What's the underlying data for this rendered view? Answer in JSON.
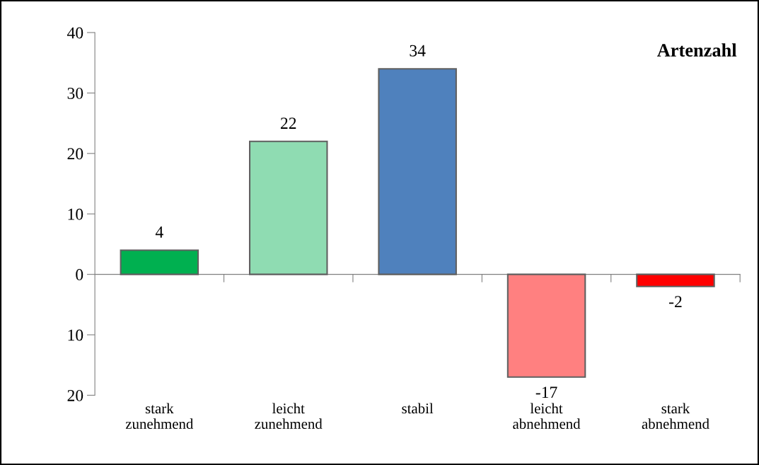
{
  "chart_data": {
    "type": "bar",
    "title": "Artenzahl",
    "categories": [
      "stark\nzunehmend",
      "leicht\nzunehmend",
      "stabil",
      "leicht\nabnehmend",
      "stark\nabnehmend"
    ],
    "values": [
      4,
      22,
      34,
      -17,
      -2
    ],
    "colors": [
      "#00b050",
      "#8fdcb2",
      "#4f81bd",
      "#ff8080",
      "#ff0000"
    ],
    "ylim": [
      -20,
      40
    ],
    "yticks": [
      {
        "value": -20,
        "label": "20"
      },
      {
        "value": -10,
        "label": "10"
      },
      0,
      10,
      20,
      30,
      40
    ],
    "data_labels": true,
    "legend": false
  }
}
